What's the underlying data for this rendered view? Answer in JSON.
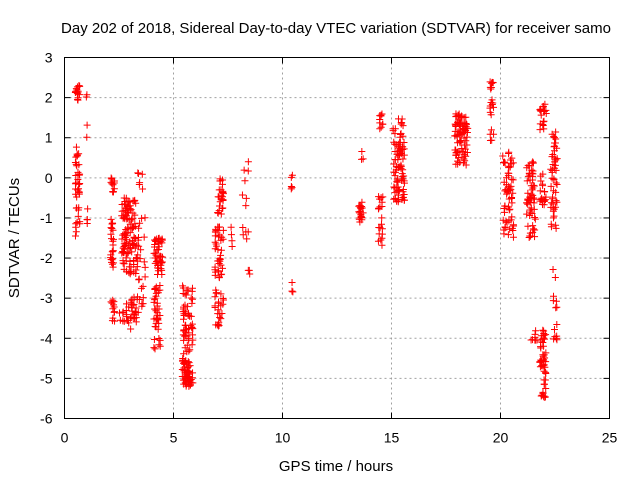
{
  "chart_data": {
    "type": "scatter",
    "title": "Day 202 of 2018, Sidereal Day-to-day VTEC variation (SDTVAR) for receiver samo",
    "xlabel": "GPS time / hours",
    "ylabel": "SDTVAR / TECUs",
    "xlim": [
      0,
      25
    ],
    "ylim": [
      -6,
      3
    ],
    "xticks": [
      "0",
      "5",
      "10",
      "15",
      "20",
      "25"
    ],
    "yticks": [
      "-6",
      "-5",
      "-4",
      "-3",
      "-2",
      "-1",
      "0",
      "1",
      "2",
      "3"
    ],
    "grid": true,
    "marker": "plus",
    "colors": {
      "points": "#ff0000",
      "grid": "#a0a0a0",
      "axis": "#000000"
    },
    "series": [
      {
        "name": "SDTVAR",
        "clusters": [
          {
            "x": [
              0.5,
              0.7
            ],
            "y": [
              1.9,
              2.3
            ],
            "n": 16
          },
          {
            "x": [
              0.5,
              0.7
            ],
            "y": [
              -1.5,
              0.8
            ],
            "n": 40
          },
          {
            "x": [
              1.0,
              1.1
            ],
            "y": [
              0.9,
              2.1
            ],
            "n": 4
          },
          {
            "x": [
              1.0,
              1.1
            ],
            "y": [
              -1.6,
              -0.4
            ],
            "n": 4
          },
          {
            "x": [
              2.1,
              2.3
            ],
            "y": [
              -0.4,
              0.0
            ],
            "n": 12
          },
          {
            "x": [
              2.1,
              2.3
            ],
            "y": [
              -2.3,
              -1.0
            ],
            "n": 24
          },
          {
            "x": [
              2.1,
              2.3
            ],
            "y": [
              -3.6,
              -3.0
            ],
            "n": 12
          },
          {
            "x": [
              2.5,
              2.7
            ],
            "y": [
              -3.6,
              -3.3
            ],
            "n": 6
          },
          {
            "x": [
              2.6,
              3.3
            ],
            "y": [
              -2.4,
              -0.5
            ],
            "n": 110
          },
          {
            "x": [
              2.7,
              3.3
            ],
            "y": [
              -3.8,
              -2.9
            ],
            "n": 30
          },
          {
            "x": [
              3.3,
              3.6
            ],
            "y": [
              -0.4,
              0.2
            ],
            "n": 6
          },
          {
            "x": [
              3.3,
              3.7
            ],
            "y": [
              -3.4,
              -0.8
            ],
            "n": 30
          },
          {
            "x": [
              4.1,
              4.5
            ],
            "y": [
              -2.5,
              -1.5
            ],
            "n": 50
          },
          {
            "x": [
              4.1,
              4.4
            ],
            "y": [
              -4.3,
              -2.6
            ],
            "n": 40
          },
          {
            "x": [
              5.4,
              5.9
            ],
            "y": [
              -5.2,
              -4.5
            ],
            "n": 60
          },
          {
            "x": [
              5.4,
              5.9
            ],
            "y": [
              -4.4,
              -2.6
            ],
            "n": 60
          },
          {
            "x": [
              6.9,
              7.3
            ],
            "y": [
              -3.7,
              -2.8
            ],
            "n": 25
          },
          {
            "x": [
              6.9,
              7.3
            ],
            "y": [
              -2.5,
              -1.2
            ],
            "n": 40
          },
          {
            "x": [
              7.0,
              7.3
            ],
            "y": [
              -1.0,
              0.0
            ],
            "n": 25
          },
          {
            "x": [
              7.6,
              7.7
            ],
            "y": [
              -1.9,
              -0.7
            ],
            "n": 4
          },
          {
            "x": [
              8.1,
              8.5
            ],
            "y": [
              -1.6,
              0.5
            ],
            "n": 12
          },
          {
            "x": [
              8.4,
              8.5
            ],
            "y": [
              -2.4,
              -2.2
            ],
            "n": 3
          },
          {
            "x": [
              10.4,
              10.5
            ],
            "y": [
              -0.3,
              0.2
            ],
            "n": 5
          },
          {
            "x": [
              10.4,
              10.5
            ],
            "y": [
              -2.9,
              -2.6
            ],
            "n": 3
          },
          {
            "x": [
              13.5,
              13.7
            ],
            "y": [
              -1.1,
              -0.5
            ],
            "n": 20
          },
          {
            "x": [
              13.6,
              13.7
            ],
            "y": [
              0.2,
              0.7
            ],
            "n": 3
          },
          {
            "x": [
              14.4,
              14.6
            ],
            "y": [
              1.2,
              1.6
            ],
            "n": 10
          },
          {
            "x": [
              14.4,
              14.6
            ],
            "y": [
              -1.7,
              -0.2
            ],
            "n": 20
          },
          {
            "x": [
              15.0,
              15.2
            ],
            "y": [
              1.1,
              1.3
            ],
            "n": 4
          },
          {
            "x": [
              15.1,
              15.6
            ],
            "y": [
              -0.6,
              0.9
            ],
            "n": 80
          },
          {
            "x": [
              15.3,
              15.6
            ],
            "y": [
              1.0,
              1.9
            ],
            "n": 10
          },
          {
            "x": [
              17.9,
              18.5
            ],
            "y": [
              0.3,
              1.6
            ],
            "n": 90
          },
          {
            "x": [
              19.5,
              19.7
            ],
            "y": [
              2.2,
              2.4
            ],
            "n": 8
          },
          {
            "x": [
              19.5,
              19.7
            ],
            "y": [
              0.8,
              2.0
            ],
            "n": 14
          },
          {
            "x": [
              20.1,
              20.6
            ],
            "y": [
              -1.5,
              0.7
            ],
            "n": 60
          },
          {
            "x": [
              21.2,
              21.6
            ],
            "y": [
              -1.5,
              0.4
            ],
            "n": 60
          },
          {
            "x": [
              21.4,
              21.7
            ],
            "y": [
              -4.1,
              -3.8
            ],
            "n": 8
          },
          {
            "x": [
              21.8,
              22.1
            ],
            "y": [
              1.2,
              1.9
            ],
            "n": 20
          },
          {
            "x": [
              21.8,
              22.1
            ],
            "y": [
              -0.7,
              0.1
            ],
            "n": 20
          },
          {
            "x": [
              21.8,
              22.1
            ],
            "y": [
              -5.5,
              -3.8
            ],
            "n": 50
          },
          {
            "x": [
              22.3,
              22.6
            ],
            "y": [
              -1.3,
              1.2
            ],
            "n": 50
          },
          {
            "x": [
              22.4,
              22.6
            ],
            "y": [
              -4.2,
              -2.0
            ],
            "n": 14
          }
        ]
      }
    ]
  }
}
